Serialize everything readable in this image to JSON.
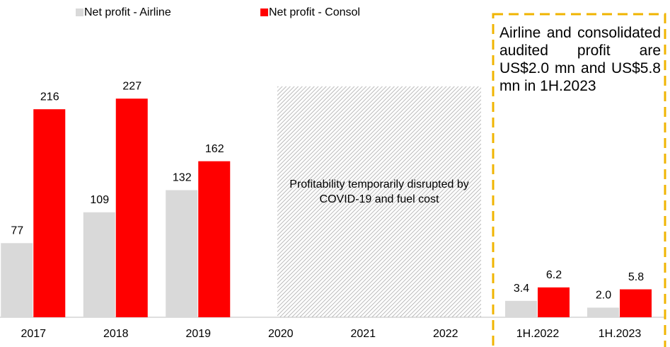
{
  "chart_data": [
    {
      "type": "bar",
      "categories": [
        "2017",
        "2018",
        "2019",
        "2020",
        "2021",
        "2022"
      ],
      "series": [
        {
          "name": "Net profit - Airline",
          "color": "#d9d9d9",
          "values": [
            77,
            109,
            132,
            null,
            null,
            null
          ]
        },
        {
          "name": "Net profit - Consol",
          "color": "#ff0000",
          "values": [
            216,
            227,
            162,
            null,
            null,
            null
          ]
        }
      ],
      "ylim": [
        0,
        250
      ],
      "annotation": "Profitability temporarily disrupted by COVID-19 and fuel cost"
    },
    {
      "type": "bar",
      "categories": [
        "1H.2022",
        "1H.2023"
      ],
      "series": [
        {
          "color": "#d9d9d9",
          "values": [
            3.4,
            2.0
          ],
          "value_labels": [
            "3.4",
            "2.0"
          ]
        },
        {
          "color": "#ff0000",
          "values": [
            6.2,
            5.8
          ],
          "value_labels": [
            "6.2",
            "5.8"
          ]
        }
      ],
      "ylim": [
        0,
        50
      ],
      "annotation": "Airline and consolidated audited profit are US$2.0 mn and US$5.8 mn in 1H.2023"
    }
  ]
}
